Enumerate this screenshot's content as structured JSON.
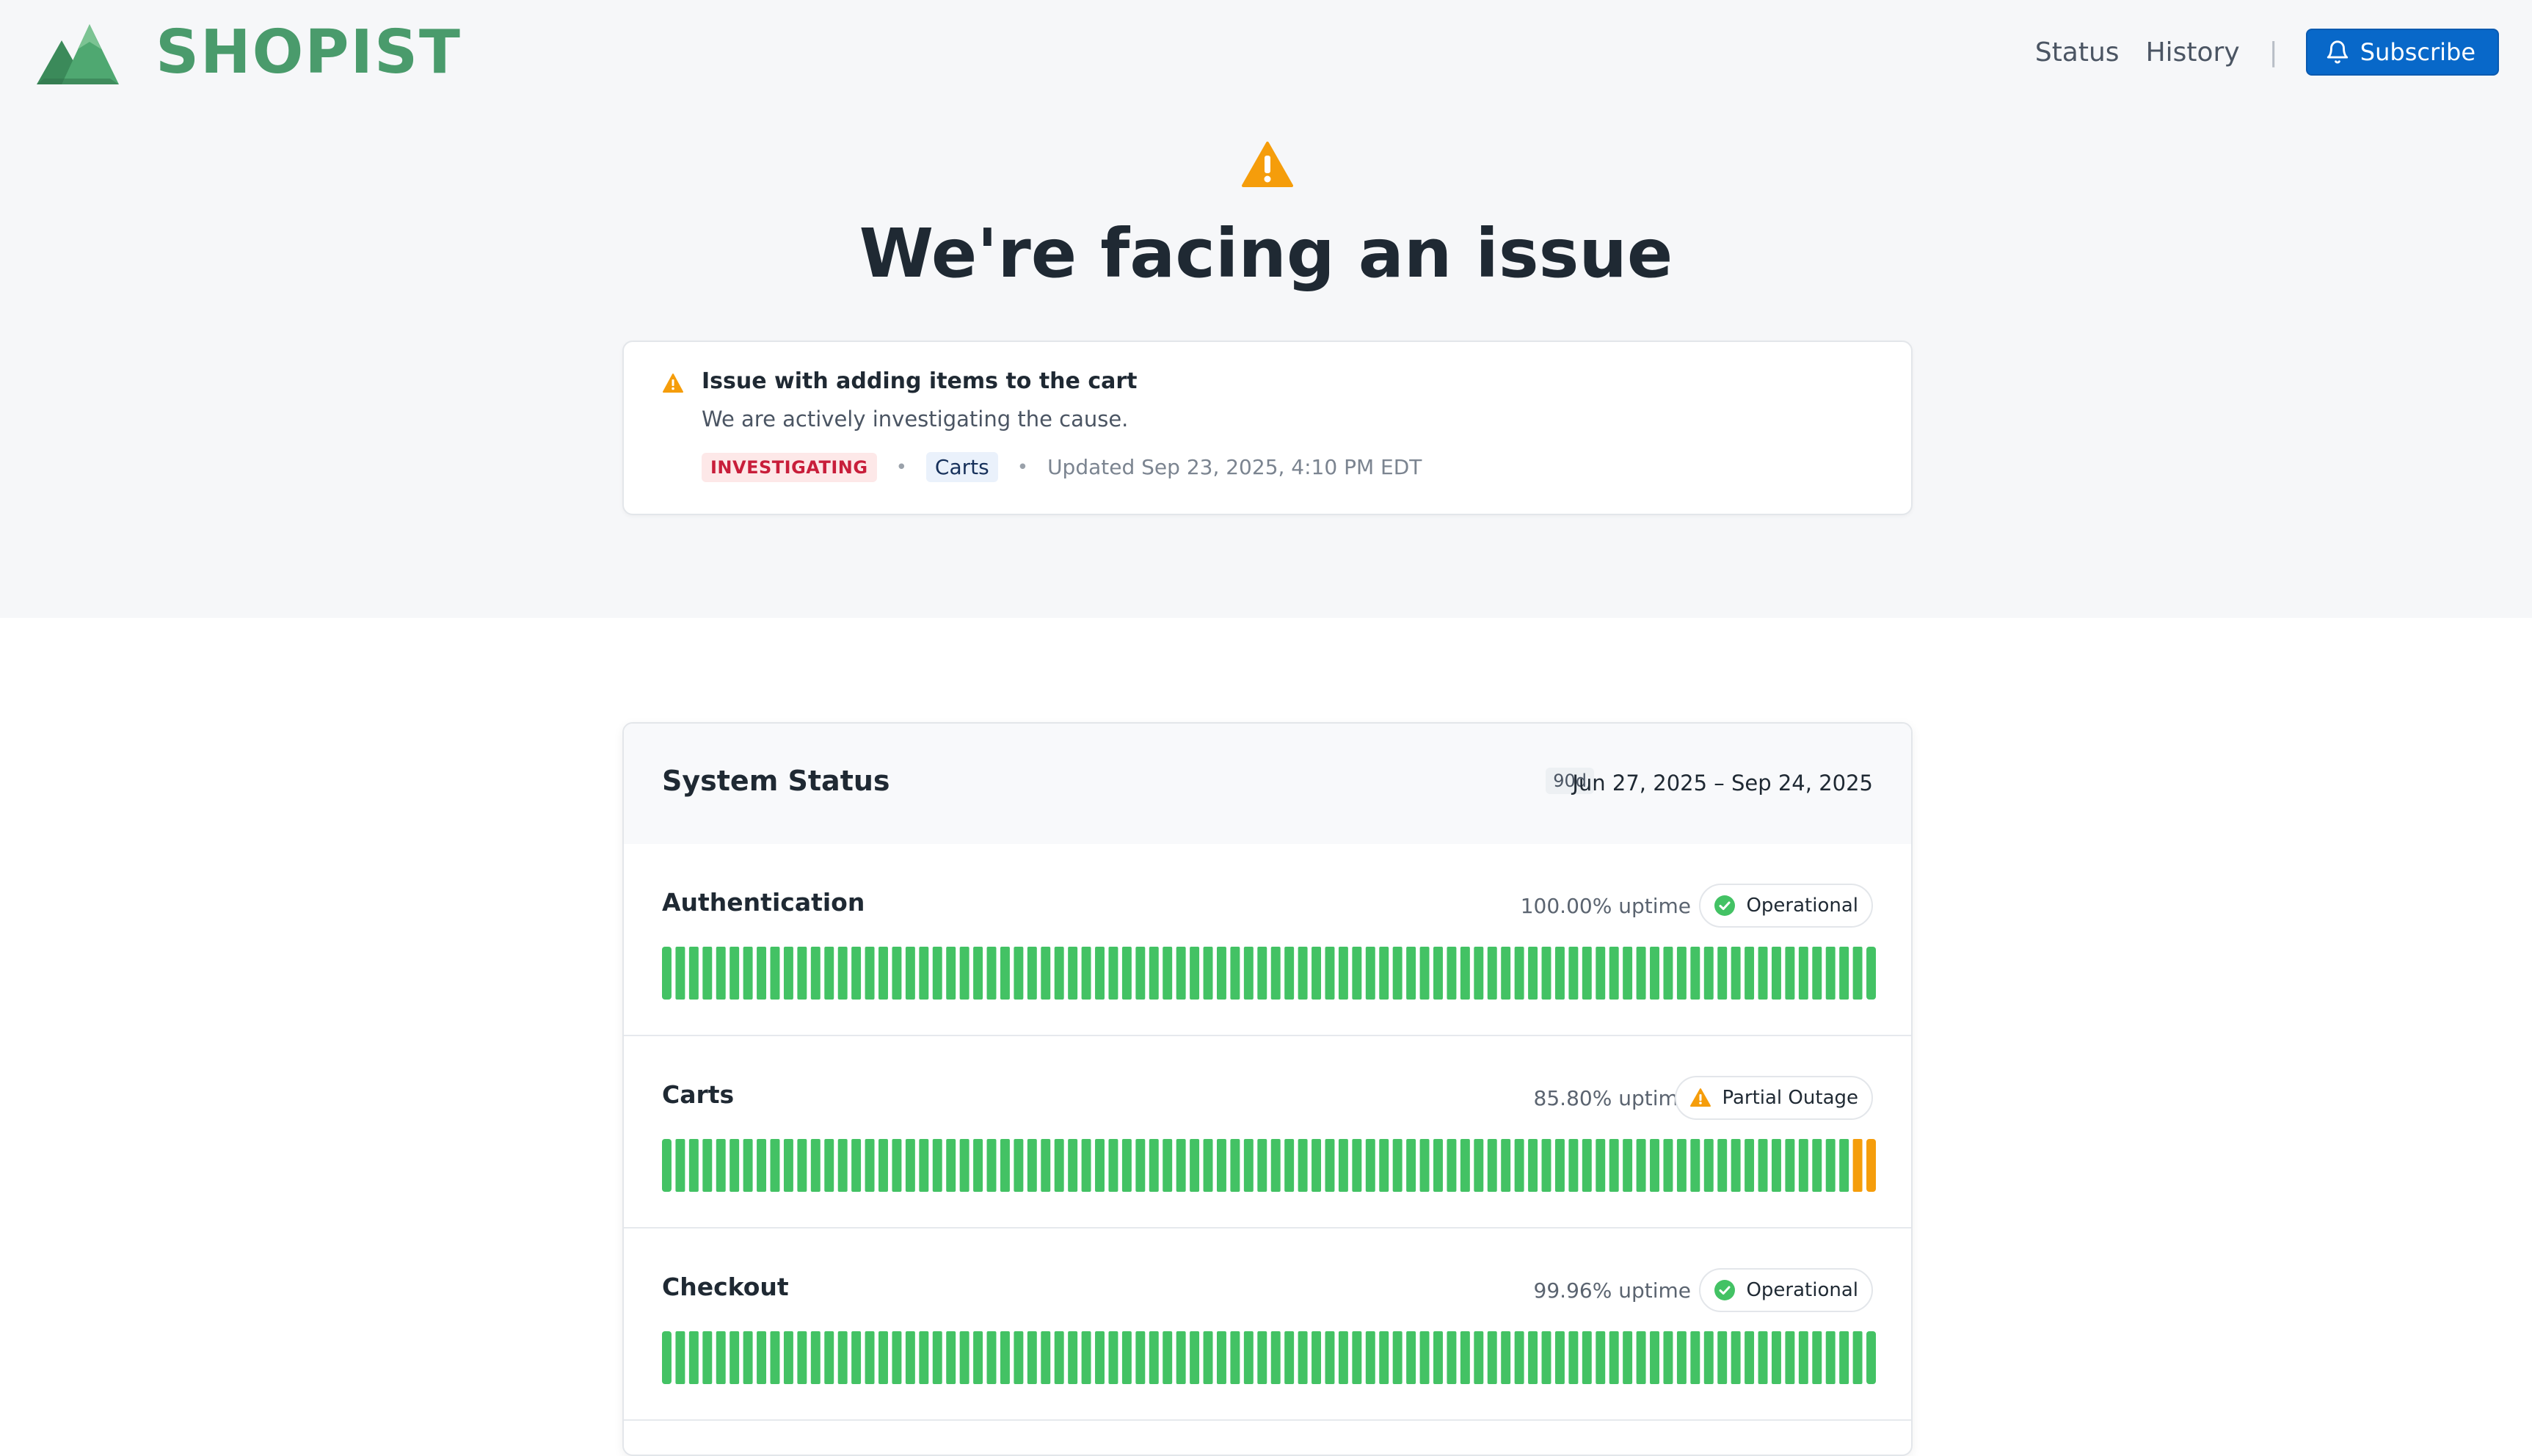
{
  "brand": {
    "name": "SHOPIST",
    "logo_icon": "mountain-logo-icon",
    "color": "#4a9b6c"
  },
  "nav": {
    "status": "Status",
    "history": "History",
    "separator": "|",
    "subscribe": "Subscribe"
  },
  "hero": {
    "title": "We're facing an issue",
    "icon": "warning-icon"
  },
  "incident": {
    "title": "Issue with adding items to the cart",
    "description": "We are actively investigating the cause.",
    "status": "INVESTIGATING",
    "component": "Carts",
    "updated": "Updated Sep 23, 2025, 4:10 PM EDT"
  },
  "system_status": {
    "title": "System Status",
    "range_badge": "90d",
    "range": "Jun 27, 2025 – Sep 24, 2025",
    "colors": {
      "operational": "#43c264",
      "partial": "#f59d0b"
    },
    "components": [
      {
        "name": "Authentication",
        "uptime": "100.00% uptime",
        "status": "Operational",
        "status_icon": "check-circle-icon",
        "bars": 90,
        "partial_days": 0
      },
      {
        "name": "Carts",
        "uptime": "85.80% uptime",
        "status": "Partial Outage",
        "status_icon": "warning-icon",
        "bars": 90,
        "partial_days": 2
      },
      {
        "name": "Checkout",
        "uptime": "99.96% uptime",
        "status": "Operational",
        "status_icon": "check-circle-icon",
        "bars": 90,
        "partial_days": 0
      }
    ]
  }
}
